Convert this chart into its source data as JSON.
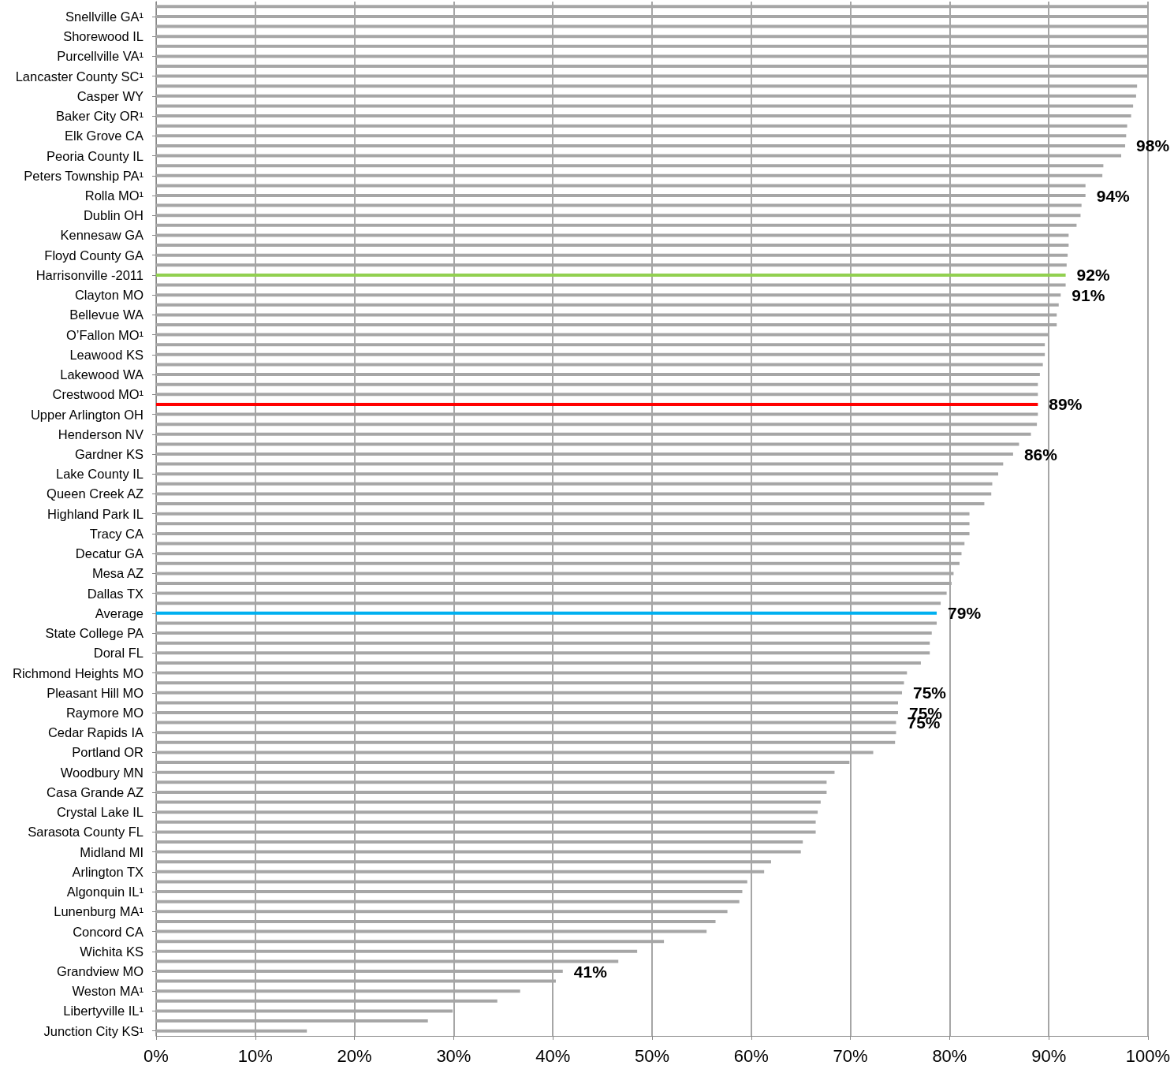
{
  "chart_data": {
    "type": "bar",
    "orientation": "horizontal",
    "categories": [
      null,
      "Snellville GA¹",
      null,
      "Shorewood IL",
      null,
      "Purcellville VA¹",
      null,
      "Lancaster County SC¹",
      null,
      "Casper WY",
      null,
      "Baker City OR¹",
      null,
      "Elk Grove CA",
      null,
      "Peoria County IL",
      null,
      "Peters Township PA¹",
      null,
      "Rolla MO¹",
      null,
      "Dublin OH",
      null,
      "Kennesaw GA",
      null,
      "Floyd County GA",
      null,
      "Harrisonville -2011",
      null,
      "Clayton MO",
      null,
      "Bellevue WA",
      null,
      "O’Fallon MO¹",
      null,
      "Leawood KS",
      null,
      "Lakewood WA",
      null,
      "Crestwood MO¹",
      null,
      "Upper Arlington OH",
      null,
      "Henderson NV",
      null,
      "Gardner KS",
      null,
      "Lake County IL",
      null,
      "Queen Creek AZ",
      null,
      "Highland Park IL",
      null,
      "Tracy CA",
      null,
      "Decatur GA",
      null,
      "Mesa AZ",
      null,
      "Dallas TX",
      null,
      "Average",
      null,
      "State College PA",
      null,
      "Doral FL",
      null,
      "Richmond Heights MO",
      null,
      "Pleasant Hill MO",
      null,
      "Raymore MO",
      null,
      "Cedar Rapids IA",
      null,
      "Portland OR",
      null,
      "Woodbury MN",
      null,
      "Casa Grande AZ",
      null,
      "Crystal Lake IL",
      null,
      "Sarasota County FL",
      null,
      "Midland MI",
      null,
      "Arlington TX",
      null,
      "Algonquin IL¹",
      null,
      "Lunenburg MA¹",
      null,
      "Concord CA",
      null,
      "Wichita KS",
      null,
      "Grandview MO",
      null,
      "Weston MA¹",
      null,
      "Libertyville IL¹",
      null,
      "Junction City KS¹"
    ],
    "values": [
      100,
      100,
      100,
      100,
      100,
      100,
      100,
      100,
      98.9,
      98.8,
      98.5,
      98.3,
      97.9,
      97.8,
      97.7,
      97.3,
      95.5,
      95.4,
      93.7,
      93.7,
      93.3,
      93.2,
      92.8,
      92.0,
      92.0,
      91.9,
      91.8,
      91.7,
      91.7,
      91.2,
      91.0,
      90.8,
      90.8,
      90.0,
      89.6,
      89.6,
      89.4,
      89.1,
      88.9,
      88.9,
      88.9,
      88.9,
      88.8,
      88.2,
      87.0,
      86.4,
      85.4,
      84.9,
      84.3,
      84.2,
      83.5,
      82.0,
      82.0,
      82.0,
      81.5,
      81.2,
      81.0,
      80.4,
      80.2,
      79.7,
      79.1,
      78.7,
      78.7,
      78.2,
      78.0,
      78.0,
      77.1,
      75.7,
      75.4,
      75.2,
      74.8,
      74.8,
      74.6,
      74.6,
      74.5,
      72.3,
      69.9,
      68.4,
      67.6,
      67.6,
      67.0,
      66.7,
      66.5,
      66.5,
      65.2,
      65.0,
      62.0,
      61.3,
      59.6,
      59.1,
      58.8,
      57.6,
      56.4,
      55.5,
      51.2,
      48.5,
      46.6,
      41.0,
      40.3,
      36.7,
      34.4,
      29.9,
      27.4,
      15.2
    ],
    "colors": [
      "#a6a6a6",
      "#a6a6a6",
      "#a6a6a6",
      "#a6a6a6",
      "#a6a6a6",
      "#a6a6a6",
      "#a6a6a6",
      "#a6a6a6",
      "#a6a6a6",
      "#a6a6a6",
      "#a6a6a6",
      "#a6a6a6",
      "#a6a6a6",
      "#a6a6a6",
      "#a6a6a6",
      "#a6a6a6",
      "#a6a6a6",
      "#a6a6a6",
      "#a6a6a6",
      "#a6a6a6",
      "#a6a6a6",
      "#a6a6a6",
      "#a6a6a6",
      "#a6a6a6",
      "#a6a6a6",
      "#a6a6a6",
      "#a6a6a6",
      "#92d050",
      "#a6a6a6",
      "#a6a6a6",
      "#a6a6a6",
      "#a6a6a6",
      "#a6a6a6",
      "#a6a6a6",
      "#a6a6a6",
      "#a6a6a6",
      "#a6a6a6",
      "#a6a6a6",
      "#a6a6a6",
      "#a6a6a6",
      "#ff0000",
      "#a6a6a6",
      "#a6a6a6",
      "#a6a6a6",
      "#a6a6a6",
      "#a6a6a6",
      "#a6a6a6",
      "#a6a6a6",
      "#a6a6a6",
      "#a6a6a6",
      "#a6a6a6",
      "#a6a6a6",
      "#a6a6a6",
      "#a6a6a6",
      "#a6a6a6",
      "#a6a6a6",
      "#a6a6a6",
      "#a6a6a6",
      "#a6a6a6",
      "#a6a6a6",
      "#a6a6a6",
      "#00b0f0",
      "#a6a6a6",
      "#a6a6a6",
      "#a6a6a6",
      "#a6a6a6",
      "#a6a6a6",
      "#a6a6a6",
      "#a6a6a6",
      "#a6a6a6",
      "#a6a6a6",
      "#a6a6a6",
      "#a6a6a6",
      "#a6a6a6",
      "#a6a6a6",
      "#a6a6a6",
      "#a6a6a6",
      "#a6a6a6",
      "#a6a6a6",
      "#a6a6a6",
      "#a6a6a6",
      "#a6a6a6",
      "#a6a6a6",
      "#a6a6a6",
      "#a6a6a6",
      "#a6a6a6",
      "#a6a6a6",
      "#a6a6a6",
      "#a6a6a6",
      "#a6a6a6",
      "#a6a6a6",
      "#a6a6a6",
      "#a6a6a6",
      "#a6a6a6",
      "#a6a6a6",
      "#a6a6a6",
      "#a6a6a6",
      "#a6a6a6",
      "#a6a6a6",
      "#a6a6a6",
      "#a6a6a6",
      "#a6a6a6",
      "#a6a6a6",
      "#a6a6a6"
    ],
    "value_labels": [
      null,
      null,
      null,
      null,
      null,
      null,
      null,
      null,
      null,
      null,
      null,
      null,
      null,
      null,
      "98%",
      null,
      null,
      null,
      null,
      "94%",
      null,
      null,
      null,
      null,
      null,
      null,
      null,
      "92%",
      null,
      "91%",
      null,
      null,
      null,
      null,
      null,
      null,
      null,
      null,
      null,
      null,
      "89%",
      null,
      null,
      null,
      null,
      "86%",
      null,
      null,
      null,
      null,
      null,
      null,
      null,
      null,
      null,
      null,
      null,
      null,
      null,
      null,
      null,
      "79%",
      null,
      null,
      null,
      null,
      null,
      null,
      null,
      "75%",
      null,
      "75%",
      "75%",
      null,
      null,
      null,
      null,
      null,
      null,
      null,
      null,
      null,
      null,
      null,
      null,
      null,
      null,
      null,
      null,
      null,
      null,
      null,
      null,
      null,
      null,
      null,
      null,
      "41%",
      null,
      null,
      null,
      null,
      null,
      null
    ],
    "xlim": [
      0,
      100
    ],
    "xticks": [
      {
        "value": 0,
        "label": "0%"
      },
      {
        "value": 10,
        "label": "10%"
      },
      {
        "value": 20,
        "label": "20%"
      },
      {
        "value": 30,
        "label": "30%"
      },
      {
        "value": 40,
        "label": "40%"
      },
      {
        "value": 50,
        "label": "50%"
      },
      {
        "value": 60,
        "label": "60%"
      },
      {
        "value": 70,
        "label": "70%"
      },
      {
        "value": 80,
        "label": "80%"
      },
      {
        "value": 90,
        "label": "90%"
      },
      {
        "value": 100,
        "label": "100%"
      }
    ],
    "grid": "x"
  }
}
